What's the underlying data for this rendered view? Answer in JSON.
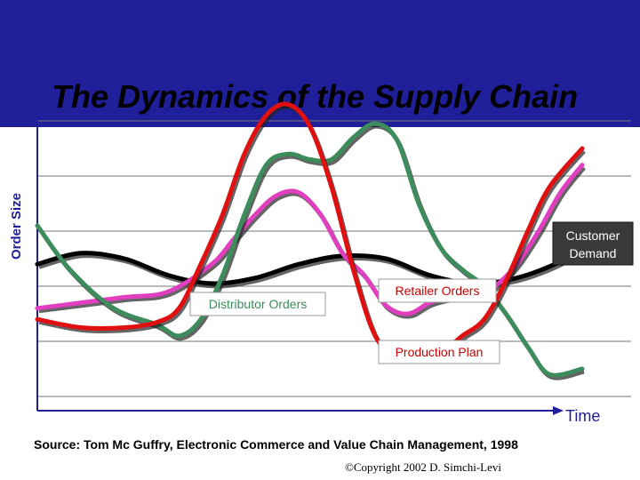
{
  "title": "The Dynamics of the Supply Chain",
  "source": "Source: Tom Mc Guffry, Electronic Commerce and Value Chain Management, 1998",
  "copyright": "©Copyright 2002 D. Simchi-Levi",
  "colors": {
    "title_band": "#1f1f99",
    "axis_label": "#1f1f99"
  },
  "chart_data": {
    "type": "line",
    "xlabel": "Time",
    "ylabel": "Order Size",
    "grid": true,
    "xlim": [
      0,
      100
    ],
    "ylim": [
      0,
      100
    ],
    "series": [
      {
        "name": "Customer Demand",
        "color": "#000000",
        "x": [
          0,
          8,
          16,
          24,
          32,
          40,
          48,
          56,
          64,
          72,
          80,
          88,
          96,
          100
        ],
        "y": [
          48,
          52,
          50,
          44,
          41,
          43,
          48,
          51,
          50,
          44,
          41,
          43,
          49,
          55
        ]
      },
      {
        "name": "Retailer Orders",
        "color": "#e040c0",
        "x": [
          0,
          8,
          16,
          24,
          32,
          36,
          40,
          44,
          48,
          52,
          56,
          60,
          64,
          68,
          72,
          76,
          80,
          84,
          88,
          92,
          96,
          100
        ],
        "y": [
          32,
          34,
          36,
          38,
          48,
          57,
          66,
          73,
          74,
          66,
          52,
          44,
          33,
          30,
          34,
          36,
          36,
          40,
          48,
          60,
          74,
          84
        ]
      },
      {
        "name": "Distributor Orders",
        "color": "#3c8c5c",
        "x": [
          0,
          6,
          14,
          22,
          26,
          30,
          34,
          38,
          42,
          46,
          50,
          54,
          58,
          62,
          66,
          70,
          74,
          78,
          82,
          86,
          90,
          94,
          100
        ],
        "y": [
          62,
          46,
          32,
          26,
          22,
          28,
          44,
          66,
          84,
          88,
          86,
          86,
          94,
          99,
          93,
          70,
          54,
          46,
          40,
          30,
          18,
          8,
          10
        ]
      },
      {
        "name": "Production Plan",
        "color": "#e01010",
        "x": [
          0,
          8,
          16,
          22,
          26,
          30,
          34,
          38,
          42,
          46,
          50,
          54,
          58,
          62,
          66,
          70,
          74,
          78,
          82,
          86,
          90,
          94,
          100
        ],
        "y": [
          28,
          25,
          25,
          27,
          32,
          48,
          66,
          88,
          102,
          106,
          98,
          76,
          46,
          22,
          15,
          15,
          16,
          22,
          28,
          42,
          60,
          76,
          90
        ]
      }
    ],
    "annotations": [
      {
        "text": "Customer Demand",
        "series": "Customer Demand"
      },
      {
        "text": "Retailer Orders",
        "series": "Retailer Orders"
      },
      {
        "text": "Distributor Orders",
        "series": "Distributor Orders"
      },
      {
        "text": "Production Plan",
        "series": "Production Plan"
      }
    ]
  }
}
